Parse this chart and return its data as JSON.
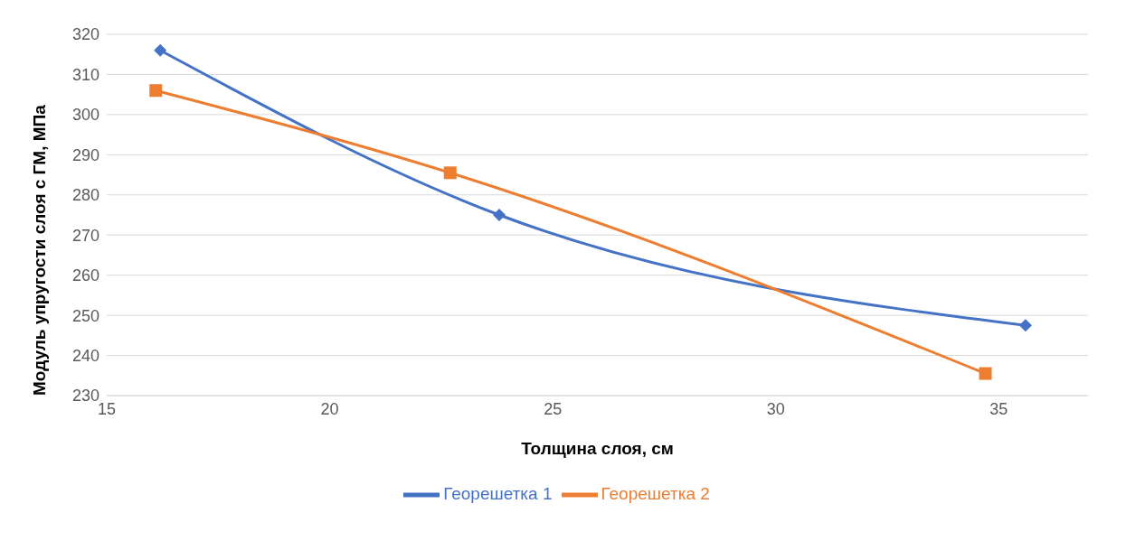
{
  "chart_data": {
    "type": "line",
    "xlabel": "Толщина слоя, см",
    "ylabel": "Модуль упругости слоя с ГМ, МПа",
    "xlim": [
      15,
      37
    ],
    "xticks": [
      15,
      20,
      25,
      30,
      35
    ],
    "ylim": [
      230,
      320
    ],
    "yticks": [
      230,
      240,
      250,
      260,
      270,
      280,
      290,
      300,
      310,
      320
    ],
    "grid": "y",
    "legend": "bottom",
    "line_style": "solid",
    "series": [
      {
        "name": "Георешетка 1",
        "color": "#4472c4",
        "marker": "diamond",
        "x": [
          16.2,
          23.8,
          35.6
        ],
        "values": [
          316,
          275,
          247.5
        ]
      },
      {
        "name": "Георешетка 2",
        "color": "#ed7d31",
        "marker": "square",
        "x": [
          16.1,
          22.7,
          34.7
        ],
        "values": [
          306,
          285.5,
          235.5
        ]
      }
    ]
  }
}
